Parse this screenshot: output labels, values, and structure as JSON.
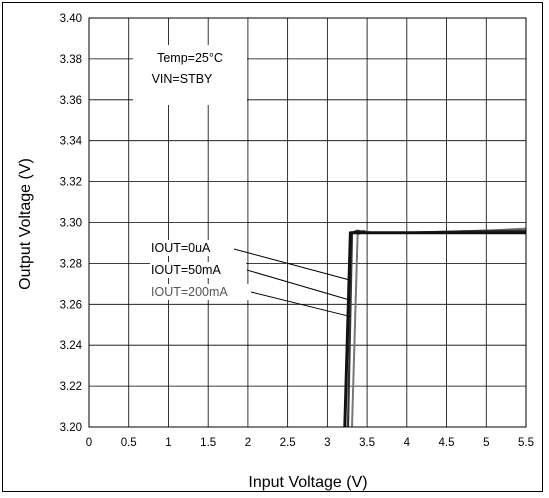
{
  "chart_data": {
    "type": "line",
    "xlabel": "Input Voltage (V)",
    "ylabel": "Output Voltage  (V)",
    "xlim": [
      0,
      5.5
    ],
    "ylim": [
      3.2,
      3.4
    ],
    "x_ticks": [
      "0",
      "0.5",
      "1",
      "1.5",
      "2",
      "2.5",
      "3",
      "3.5",
      "4",
      "4.5",
      "5",
      "5.5"
    ],
    "y_ticks": [
      "3.20",
      "3.22",
      "3.24",
      "3.26",
      "3.28",
      "3.30",
      "3.32",
      "3.34",
      "3.36",
      "3.38",
      "3.40"
    ],
    "grid": true,
    "conditions": [
      "Temp=25°C",
      "VIN=STBY"
    ],
    "series": [
      {
        "name": "IOUT=0uA",
        "color": "#111111",
        "x": [
          3.22,
          3.29,
          3.35,
          3.45,
          4.0,
          5.0,
          5.5
        ],
        "y": [
          3.2,
          3.295,
          3.295,
          3.295,
          3.295,
          3.295,
          3.295
        ]
      },
      {
        "name": "IOUT=50mA",
        "color": "#333333",
        "x": [
          3.26,
          3.31,
          3.38,
          3.5,
          4.0,
          5.0,
          5.5
        ],
        "y": [
          3.2,
          3.295,
          3.296,
          3.295,
          3.295,
          3.296,
          3.296
        ]
      },
      {
        "name": "IOUT=200mA",
        "color": "#777777",
        "x": [
          3.31,
          3.38,
          3.45,
          3.55,
          4.0,
          5.0,
          5.5
        ],
        "y": [
          3.2,
          3.294,
          3.296,
          3.295,
          3.295,
          3.296,
          3.297
        ]
      }
    ]
  }
}
